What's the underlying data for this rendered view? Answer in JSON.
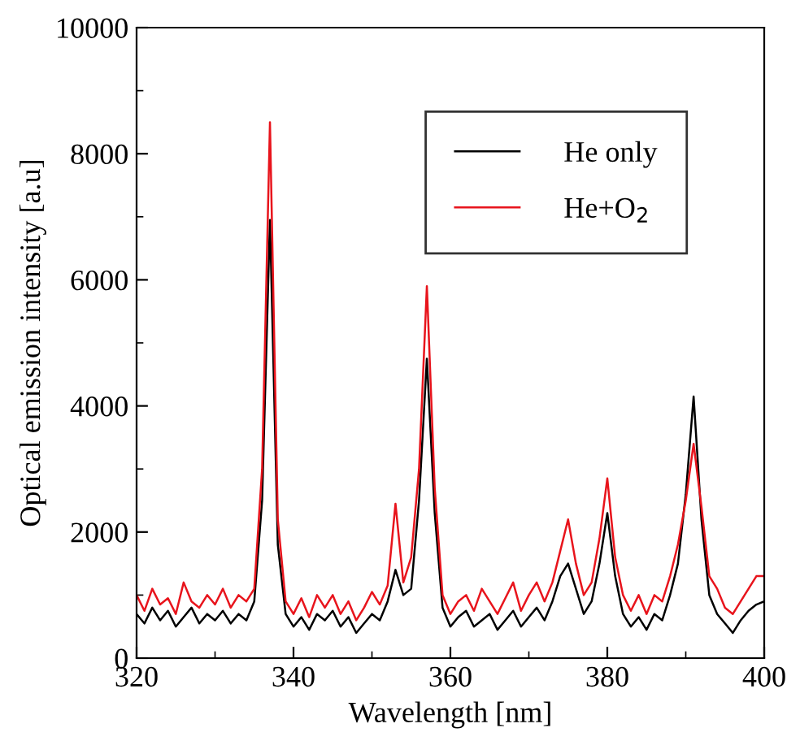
{
  "chart_data": {
    "type": "line",
    "xlabel": "Wavelength [nm]",
    "ylabel": "Optical emission intensity [a.u]",
    "x": [
      320,
      321,
      322,
      323,
      324,
      325,
      326,
      327,
      328,
      329,
      330,
      331,
      332,
      333,
      334,
      335,
      336,
      337,
      338,
      339,
      340,
      341,
      342,
      343,
      344,
      345,
      346,
      347,
      348,
      349,
      350,
      351,
      352,
      353,
      354,
      355,
      356,
      357,
      358,
      359,
      360,
      361,
      362,
      363,
      364,
      365,
      366,
      367,
      368,
      369,
      370,
      371,
      372,
      373,
      374,
      375,
      376,
      377,
      378,
      379,
      380,
      381,
      382,
      383,
      384,
      385,
      386,
      387,
      388,
      389,
      390,
      391,
      392,
      393,
      394,
      395,
      396,
      397,
      398,
      399,
      400
    ],
    "series": [
      {
        "name": "He only",
        "color": "#000000",
        "values": [
          700,
          550,
          800,
          600,
          750,
          500,
          650,
          800,
          550,
          700,
          600,
          750,
          550,
          700,
          600,
          900,
          2500,
          6950,
          1800,
          700,
          500,
          650,
          450,
          700,
          600,
          750,
          500,
          650,
          400,
          550,
          700,
          600,
          900,
          1400,
          1000,
          1100,
          2500,
          4750,
          2300,
          800,
          500,
          650,
          750,
          500,
          600,
          700,
          450,
          600,
          750,
          500,
          650,
          800,
          600,
          900,
          1300,
          1500,
          1100,
          700,
          900,
          1500,
          2300,
          1300,
          700,
          500,
          650,
          450,
          700,
          600,
          1000,
          1500,
          2600,
          4150,
          2200,
          1000,
          700,
          550,
          400,
          600,
          750,
          850,
          900
        ]
      },
      {
        "name": "He+O$_{2}$",
        "color": "#e8141c",
        "values": [
          1000,
          750,
          1100,
          850,
          950,
          700,
          1200,
          900,
          800,
          1000,
          850,
          1100,
          800,
          1000,
          900,
          1100,
          3000,
          8500,
          2200,
          900,
          700,
          950,
          650,
          1000,
          800,
          1000,
          700,
          900,
          600,
          800,
          1050,
          850,
          1150,
          2450,
          1200,
          1600,
          3000,
          5900,
          2700,
          1000,
          700,
          900,
          1000,
          750,
          1100,
          900,
          700,
          950,
          1200,
          750,
          1000,
          1200,
          900,
          1200,
          1700,
          2200,
          1500,
          1000,
          1200,
          1900,
          2850,
          1600,
          1000,
          750,
          1000,
          700,
          1000,
          900,
          1300,
          1800,
          2500,
          3400,
          2400,
          1300,
          1100,
          800,
          700,
          900,
          1100,
          1300,
          1300
        ]
      }
    ],
    "xlim": [
      320,
      400
    ],
    "ylim": [
      0,
      10000
    ],
    "xticks": [
      320,
      340,
      360,
      380,
      400
    ],
    "yticks": [
      0,
      2000,
      4000,
      6000,
      8000,
      10000
    ],
    "legend": "top right",
    "grid": false
  }
}
